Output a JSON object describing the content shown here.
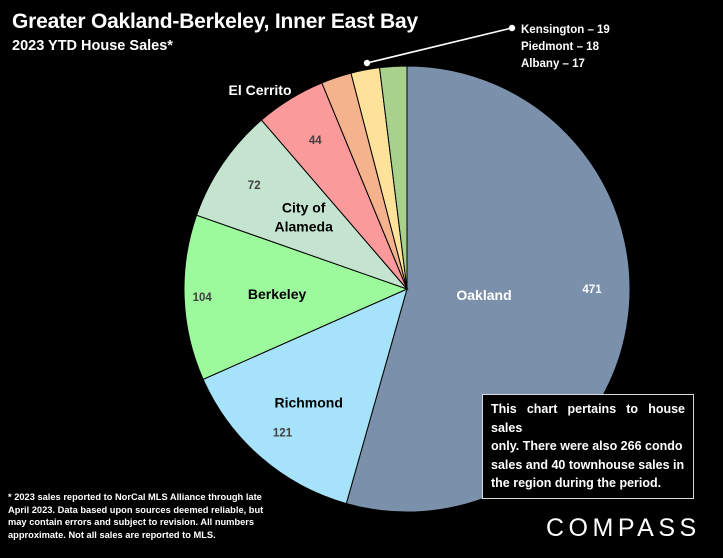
{
  "header": {
    "title": "Greater Oakland-Berkeley, Inner East Bay",
    "subtitle": "2023 YTD House Sales*"
  },
  "chart_data": {
    "type": "pie",
    "title": "Greater Oakland-Berkeley, Inner East Bay",
    "subtitle": "2023 YTD House Sales*",
    "slices": [
      {
        "label": "Oakland",
        "value": 471,
        "color": "#7b90ab"
      },
      {
        "label": "Richmond",
        "value": 121,
        "color": "#a6e3fb"
      },
      {
        "label": "Berkeley",
        "value": 104,
        "color": "#9cfa9c"
      },
      {
        "label": "City of Alameda",
        "value": 72,
        "color": "#c4e4d0"
      },
      {
        "label": "El Cerrito",
        "value": 44,
        "color": "#fb9a9a"
      },
      {
        "label": "Kensington",
        "value": 19,
        "color": "#f4b38c"
      },
      {
        "label": "Piedmont",
        "value": 18,
        "color": "#fde39a"
      },
      {
        "label": "Albany",
        "value": 17,
        "color": "#a9d18e"
      }
    ],
    "slice_labels": {
      "Oakland": "Oakland",
      "Richmond": "Richmond",
      "Berkeley": "Berkeley",
      "City of Alameda": [
        "City of",
        "Alameda"
      ],
      "El Cerrito": "El Cerrito"
    },
    "callout": [
      "Kensington – 19",
      "Piedmont – 18",
      "Albany – 17"
    ]
  },
  "note": {
    "lines": [
      "This chart pertains to house sales",
      "only. There were also 266 condo",
      "sales and 40 townhouse sales in",
      "the region during the period."
    ]
  },
  "footnote": {
    "lines": [
      "* 2023 sales reported to NorCal MLS Alliance through late",
      "April 2023. Data based upon sources deemed reliable, but",
      "may contain errors and subject to revision. All numbers",
      "approximate. Not all sales are reported to MLS."
    ]
  },
  "brand": {
    "name": "COMPASS"
  }
}
